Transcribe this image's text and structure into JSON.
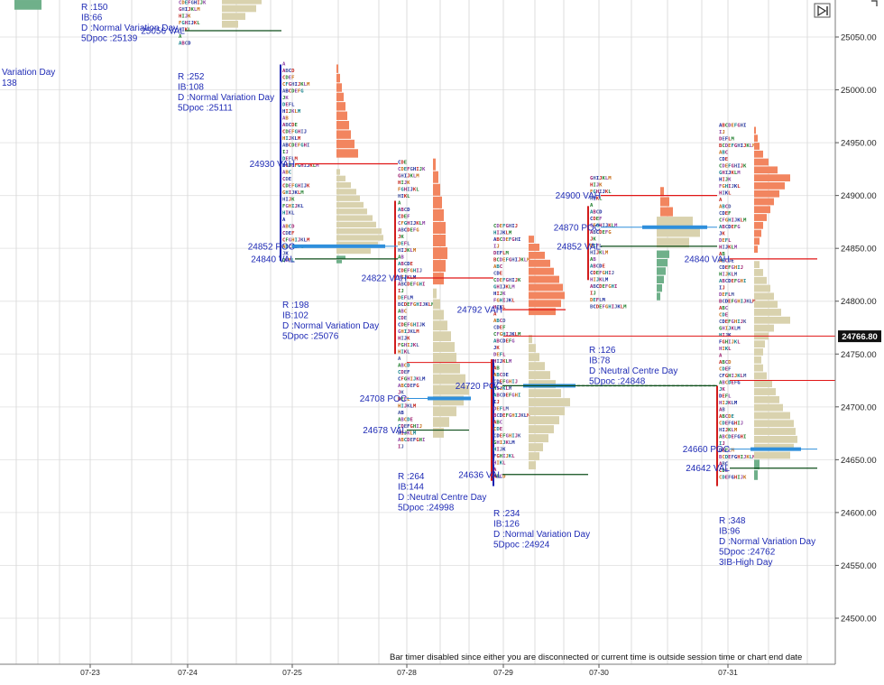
{
  "chart_data": {
    "type": "table",
    "price_axis": {
      "ticks": [
        "25050.00",
        "25000.00",
        "24950.00",
        "24900.00",
        "24850.00",
        "24800.00",
        "24750.00",
        "24700.00",
        "24650.00",
        "24600.00",
        "24550.00",
        "24500.00"
      ],
      "tick_values": [
        25050,
        25000,
        24950,
        24900,
        24850,
        24800,
        24750,
        24700,
        24650,
        24600,
        24550,
        24500
      ],
      "current_price": "24766.80",
      "current_value": 24766.8
    },
    "dates": [
      "07-23",
      "07-24",
      "07-25",
      "07-28",
      "07-29",
      "07-30",
      "07-31"
    ],
    "left_partial": {
      "line1": "Variation Day",
      "line2": "138"
    },
    "sessions": [
      {
        "date": "07-24",
        "info": [
          "R :150",
          "IB:66",
          "D :Normal Variation Day",
          "5Dpoc :25139"
        ],
        "levels": [
          {
            "text": "25056 VAL",
            "value": 25056
          }
        ]
      },
      {
        "date": "07-25",
        "info": [
          "R :252",
          "IB:108",
          "D :Normal Variation Day",
          "5Dpoc :25111"
        ],
        "levels": [
          {
            "text": "24930 VAH",
            "value": 24930
          },
          {
            "text": "24852 POC",
            "value": 24852
          },
          {
            "text": "24840 VAL",
            "value": 24840
          }
        ],
        "info_after": [
          "R :198",
          "IB:102",
          "D :Normal Variation Day",
          "5Dpoc :25076"
        ]
      },
      {
        "date": "07-28",
        "levels": [
          {
            "text": "24822 VAH",
            "value": 24822
          },
          {
            "text": "24708 POC",
            "value": 24708
          },
          {
            "text": "24678 VAL",
            "value": 24678
          }
        ],
        "info": [
          "R :264",
          "IB:144",
          "D :Neutral Centre Day",
          "5Dpoc :24998"
        ]
      },
      {
        "date": "07-29",
        "levels": [
          {
            "text": "24792 VAH",
            "value": 24792
          },
          {
            "text": "24720 POC",
            "value": 24720
          },
          {
            "text": "24636 VAL",
            "value": 24636
          }
        ],
        "info": [
          "R :234",
          "IB:126",
          "D :Normal Variation Day",
          "5Dpoc :24924"
        ]
      },
      {
        "date": "07-30",
        "levels": [
          {
            "text": "24900 VAH",
            "value": 24900
          },
          {
            "text": "24870 POC",
            "value": 24870
          },
          {
            "text": "24852 VAL",
            "value": 24852
          }
        ],
        "info": [
          "R :126",
          "IB:78",
          "D :Neutral Centre Day",
          "5Dpoc :24848"
        ]
      },
      {
        "date": "07-31",
        "levels": [
          {
            "text": "24840 VAH",
            "value": 24840
          },
          {
            "text": "24660 POC",
            "value": 24660
          },
          {
            "text": "24642 VAL",
            "value": 24642
          }
        ],
        "info": [
          "R :348",
          "IB:96",
          "D :Normal Variation Day",
          "5Dpoc :24762",
          "3IB-High Day"
        ]
      }
    ],
    "tpo_samples": [
      "A",
      "AB",
      "ABC",
      "ABCD",
      "ABCDE",
      "CDE",
      "CDEF",
      "CDEFGHIJ",
      "CDEFGHIJK",
      "CFGHIJKLM",
      "HIJKLM",
      "GHIJKLM",
      "ABCDEFG",
      "ABCDEFGHI",
      "HIJK",
      "JK",
      "IJ",
      "FGHIJKL",
      "DEFL",
      "DEFLM",
      "HIKL",
      "HIJKLM",
      "BCDEFGHIJKLM"
    ],
    "tpo_colors": [
      "#1b2a9e",
      "#c2231e",
      "#1e7d2b",
      "#8a3ea3",
      "#c56a12",
      "#0f7f8a",
      "#9c1e6e",
      "#44549e"
    ]
  },
  "status_message": "Bar timer disabled since either you are disconnected or current time is outside session time or chart end date",
  "colors": {
    "vah_val_red": "#e01616",
    "val_green": "#0d4e1a",
    "poc_blue": "#2f8fdc",
    "profile_salmon": "#f2855f",
    "profile_tan": "#d9d2ae",
    "profile_green": "#6fb08a",
    "label_blue": "#1f2bb5",
    "range_blue": "#1722b0",
    "range_red": "#d21c1c"
  },
  "icons": {
    "scroll": "play-end-icon",
    "top_corner": "bracket-icon"
  }
}
